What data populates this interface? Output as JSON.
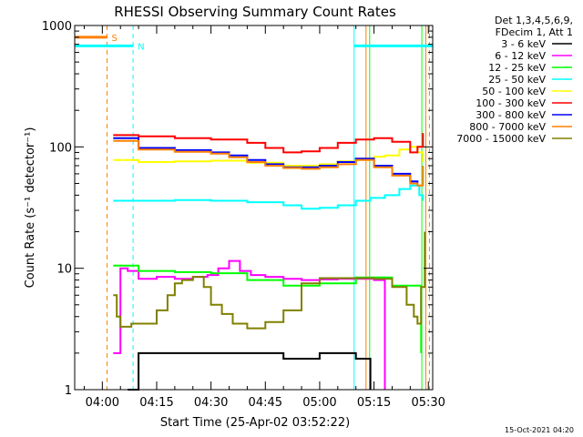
{
  "chart_data": {
    "type": "line",
    "title": "RHESSI Observing Summary Count Rates",
    "xlabel": "Start Time (25-Apr-02 03:52:22)",
    "ylabel": "Count Rate (s⁻¹ detector⁻¹)",
    "y_scale": "log",
    "ylim": [
      1,
      1000
    ],
    "xlim_minutes_after_0400": [
      -7.63,
      91.2
    ],
    "x_ticks": [
      {
        "label": "04:00",
        "min": 0
      },
      {
        "label": "04:15",
        "min": 15
      },
      {
        "label": "04:30",
        "min": 30
      },
      {
        "label": "04:45",
        "min": 45
      },
      {
        "label": "05:00",
        "min": 60
      },
      {
        "label": "05:15",
        "min": 75
      },
      {
        "label": "05:30",
        "min": 90
      }
    ],
    "y_ticks": [
      {
        "label": "1",
        "v": 1
      },
      {
        "label": "10",
        "v": 10
      },
      {
        "label": "100",
        "v": 100
      },
      {
        "label": "1000",
        "v": 1000
      }
    ],
    "legend_header": [
      "Det 1,3,4,5,6,9,",
      "FDecim 1, Att 1"
    ],
    "legend_position": "right",
    "series": [
      {
        "name": "3 - 6 keV",
        "color": "#000000",
        "x": [
          7,
          10,
          20,
          30,
          40,
          50,
          60,
          68,
          70,
          74
        ],
        "y": [
          1,
          2,
          2,
          2,
          2,
          1.8,
          2,
          2,
          1.8,
          1
        ]
      },
      {
        "name": "6 - 12 keV",
        "color": "#ff00ff",
        "x": [
          3,
          5,
          7,
          10,
          15,
          20,
          25,
          29,
          32,
          35,
          38,
          41,
          45,
          50,
          55,
          60,
          65,
          70,
          73,
          75,
          78
        ],
        "y": [
          2,
          10,
          9.5,
          8.2,
          8.5,
          8.2,
          8.5,
          8.8,
          10,
          11.5,
          9.5,
          8.8,
          8.5,
          8.2,
          8,
          8.1,
          8.2,
          8.2,
          8.2,
          8,
          1
        ]
      },
      {
        "name": "12 - 25 keV",
        "color": "#00ff00",
        "x": [
          3,
          10,
          20,
          30,
          40,
          50,
          60,
          70,
          80,
          85,
          88
        ],
        "y": [
          10.5,
          9.5,
          9.3,
          9.1,
          8,
          7.2,
          7.5,
          8.4,
          7.2,
          7.2,
          2
        ]
      },
      {
        "name": "25 - 50 keV",
        "color": "#00ffff",
        "x": [
          3,
          10,
          20,
          30,
          40,
          50,
          55,
          60,
          65,
          70,
          74,
          78,
          82,
          85,
          87.5,
          88.5
        ],
        "y": [
          36,
          36,
          36.5,
          36,
          35,
          33,
          31,
          31.5,
          33,
          36,
          38,
          40,
          45,
          48,
          40,
          36
        ]
      },
      {
        "name": "50 - 100 keV",
        "color": "#ffff00",
        "x": [
          3,
          10,
          20,
          30,
          40,
          50,
          55,
          60,
          65,
          70,
          75,
          78,
          82,
          85,
          87,
          88.5
        ],
        "y": [
          78,
          75,
          76,
          77,
          74,
          70,
          70,
          72,
          76,
          80,
          83,
          85,
          95,
          100,
          90,
          75
        ]
      },
      {
        "name": "100 - 300 keV",
        "color": "#ff0000",
        "x": [
          3,
          10,
          20,
          30,
          40,
          45,
          50,
          55,
          60,
          65,
          70,
          75,
          80,
          85,
          87,
          88.5
        ],
        "y": [
          125,
          122,
          118,
          115,
          108,
          98,
          90,
          92,
          98,
          108,
          115,
          118,
          110,
          90,
          100,
          130
        ]
      },
      {
        "name": "300 - 800 keV",
        "color": "#0000ff",
        "x": [
          3,
          10,
          20,
          30,
          35,
          40,
          45,
          50,
          55,
          60,
          65,
          70,
          75,
          80,
          85,
          87
        ],
        "y": [
          118,
          98,
          94,
          90,
          85,
          78,
          72,
          68,
          68,
          70,
          75,
          80,
          70,
          60,
          52,
          50
        ]
      },
      {
        "name": "800 - 7000 keV",
        "color": "#ff8000",
        "x": [
          3,
          10,
          20,
          30,
          35,
          40,
          45,
          50,
          55,
          60,
          65,
          70,
          75,
          80,
          85,
          87,
          88.5
        ],
        "y": [
          112,
          95,
          91,
          88,
          82,
          75,
          70,
          67,
          66,
          68,
          72,
          78,
          68,
          58,
          50,
          48,
          70
        ]
      },
      {
        "name": "7000 - 15000 keV",
        "color": "#808000",
        "x": [
          3,
          4,
          5,
          8,
          12,
          15,
          18,
          20,
          22,
          25,
          28,
          30,
          33,
          36,
          40,
          45,
          50,
          55,
          60,
          65,
          70,
          75,
          80,
          84,
          86,
          87,
          88,
          89
        ],
        "y": [
          6,
          4,
          3.3,
          3.5,
          3.5,
          4.5,
          6,
          7.5,
          8,
          8.5,
          7,
          5,
          4.2,
          3.5,
          3.2,
          3.6,
          4.5,
          7.5,
          8.3,
          8.3,
          8.3,
          8.2,
          7,
          5,
          4,
          3.5,
          7,
          20
        ]
      }
    ],
    "flag_markers": [
      {
        "label": "S",
        "color": "#ff8000",
        "x_start": -7.63,
        "x_end": 1.3,
        "y": 800
      },
      {
        "label": "N",
        "color": "#00ffff",
        "x_start": -7.63,
        "x_end": 8.5,
        "y": 680
      },
      {
        "label": "",
        "color": "#00ffff",
        "x_start": 69.5,
        "x_end": 91.2,
        "y": 680
      }
    ],
    "vertical_lines": [
      {
        "x": 1.3,
        "color": "#ff8000",
        "style": "dashed"
      },
      {
        "x": 8.5,
        "color": "#00ffff",
        "style": "dashed"
      },
      {
        "x": 69.5,
        "color": "#00ffff",
        "style": "solid"
      },
      {
        "x": 72.8,
        "color": "#ff8000",
        "style": "solid"
      },
      {
        "x": 73.8,
        "color": "#00ff00",
        "style": "solid"
      },
      {
        "x": 88.2,
        "color": "#00ff00",
        "style": "solid"
      },
      {
        "x": 89.3,
        "color": "#ff8000",
        "style": "solid"
      },
      {
        "x": 90.3,
        "color": "#ff8000",
        "style": "dashed"
      }
    ],
    "timestamp": "15-Oct-2021 04:20"
  }
}
